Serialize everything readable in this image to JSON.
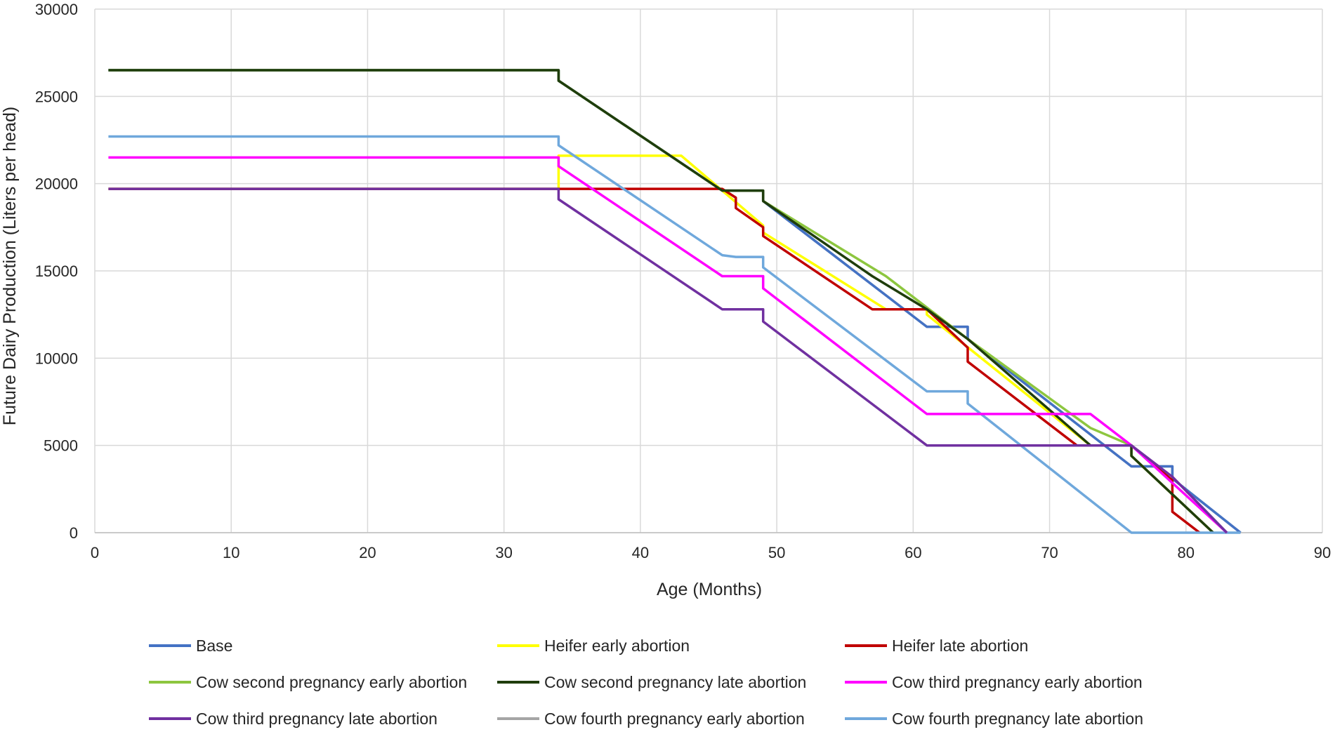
{
  "chart_data": {
    "type": "line",
    "title": "",
    "xlabel": "Age (Months)",
    "ylabel": "Future Dairy Production (Liters per head)",
    "xlim": [
      0,
      90
    ],
    "ylim": [
      0,
      30000
    ],
    "xticks": [
      0,
      10,
      20,
      30,
      40,
      50,
      60,
      70,
      80,
      90
    ],
    "yticks": [
      0,
      5000,
      10000,
      15000,
      20000,
      25000,
      30000
    ],
    "grid": true,
    "legend_position": "bottom",
    "series": [
      {
        "name": "Cow fourth pregnancy early abortion",
        "color": "#a5a5a5",
        "points": [
          [
            1,
            26500
          ],
          [
            34,
            26500
          ],
          [
            34,
            25900
          ],
          [
            46,
            19600
          ],
          [
            49,
            19600
          ],
          [
            49,
            19000
          ],
          [
            61,
            11800
          ],
          [
            64,
            11800
          ],
          [
            64,
            11100
          ],
          [
            76,
            3800
          ],
          [
            79,
            3800
          ],
          [
            79,
            3100
          ],
          [
            84,
            0
          ]
        ]
      },
      {
        "name": "Base",
        "color": "#4472c4",
        "points": [
          [
            1,
            26500
          ],
          [
            34,
            26500
          ],
          [
            34,
            25900
          ],
          [
            46,
            19600
          ],
          [
            49,
            19600
          ],
          [
            49,
            19000
          ],
          [
            61,
            11800
          ],
          [
            64,
            11800
          ],
          [
            64,
            11100
          ],
          [
            76,
            3800
          ],
          [
            79,
            3800
          ],
          [
            79,
            3100
          ],
          [
            84,
            0
          ]
        ]
      },
      {
        "name": "Heifer early abortion",
        "color": "#ffff00",
        "points": [
          [
            1,
            19700
          ],
          [
            34,
            19700
          ],
          [
            34,
            21600
          ],
          [
            43,
            21600
          ],
          [
            49,
            17600
          ],
          [
            49,
            17200
          ],
          [
            58,
            12800
          ],
          [
            61,
            12800
          ],
          [
            61,
            12500
          ],
          [
            73,
            5000
          ],
          [
            76,
            5000
          ],
          [
            76,
            4400
          ],
          [
            82,
            0
          ]
        ]
      },
      {
        "name": "Cow second pregnancy early abortion",
        "color": "#8dc63f",
        "points": [
          [
            1,
            26500
          ],
          [
            34,
            26500
          ],
          [
            34,
            25900
          ],
          [
            46,
            19600
          ],
          [
            49,
            19600
          ],
          [
            49,
            19000
          ],
          [
            58,
            14700
          ],
          [
            61,
            12900
          ],
          [
            64,
            11100
          ],
          [
            73,
            6000
          ],
          [
            76,
            5000
          ],
          [
            76,
            4400
          ],
          [
            82,
            0
          ]
        ]
      },
      {
        "name": "Heifer late abortion",
        "color": "#c00000",
        "points": [
          [
            1,
            19700
          ],
          [
            34,
            19700
          ],
          [
            46,
            19700
          ],
          [
            47,
            19200
          ],
          [
            47,
            18600
          ],
          [
            49,
            17500
          ],
          [
            49,
            17000
          ],
          [
            57,
            12800
          ],
          [
            61,
            12800
          ],
          [
            64,
            10600
          ],
          [
            64,
            9800
          ],
          [
            72,
            5000
          ],
          [
            76,
            5000
          ],
          [
            79,
            3000
          ],
          [
            79,
            1200
          ],
          [
            81,
            0
          ]
        ]
      },
      {
        "name": "Cow second pregnancy late abortion",
        "color": "#1f3d0c",
        "points": [
          [
            1,
            26500
          ],
          [
            34,
            26500
          ],
          [
            34,
            25900
          ],
          [
            46,
            19600
          ],
          [
            49,
            19600
          ],
          [
            49,
            19000
          ],
          [
            57,
            14700
          ],
          [
            61,
            12800
          ],
          [
            64,
            11100
          ],
          [
            73,
            5000
          ],
          [
            76,
            5000
          ],
          [
            76,
            4400
          ],
          [
            82,
            0
          ]
        ]
      },
      {
        "name": "Cow fourth pregnancy late abortion",
        "color": "#6fa8dc",
        "points": [
          [
            1,
            22700
          ],
          [
            34,
            22700
          ],
          [
            34,
            22200
          ],
          [
            46,
            15900
          ],
          [
            47,
            15800
          ],
          [
            49,
            15800
          ],
          [
            49,
            15200
          ],
          [
            61,
            8100
          ],
          [
            64,
            8100
          ],
          [
            64,
            7400
          ],
          [
            76,
            0
          ],
          [
            84,
            0
          ]
        ]
      },
      {
        "name": "Cow third pregnancy early abortion",
        "color": "#ff00ff",
        "points": [
          [
            1,
            21500
          ],
          [
            34,
            21500
          ],
          [
            34,
            21000
          ],
          [
            46,
            14700
          ],
          [
            49,
            14700
          ],
          [
            49,
            14000
          ],
          [
            61,
            6800
          ],
          [
            73,
            6800
          ],
          [
            76,
            5000
          ],
          [
            83,
            0
          ]
        ]
      },
      {
        "name": "Cow third pregnancy late abortion",
        "color": "#7030a0",
        "points": [
          [
            1,
            19700
          ],
          [
            34,
            19700
          ],
          [
            34,
            19100
          ],
          [
            46,
            12800
          ],
          [
            49,
            12800
          ],
          [
            49,
            12100
          ],
          [
            61,
            5000
          ],
          [
            76,
            5000
          ],
          [
            79,
            3200
          ],
          [
            83,
            0
          ]
        ]
      }
    ],
    "legend": [
      {
        "label": "Base",
        "color": "#4472c4"
      },
      {
        "label": "Heifer early abortion",
        "color": "#ffff00"
      },
      {
        "label": "Heifer late abortion",
        "color": "#c00000"
      },
      {
        "label": "Cow second pregnancy early abortion",
        "color": "#8dc63f"
      },
      {
        "label": "Cow second pregnancy late abortion",
        "color": "#1f3d0c"
      },
      {
        "label": "Cow third pregnancy early abortion",
        "color": "#ff00ff"
      },
      {
        "label": "Cow third pregnancy late abortion",
        "color": "#7030a0"
      },
      {
        "label": "Cow fourth pregnancy early abortion",
        "color": "#a5a5a5"
      },
      {
        "label": "Cow fourth pregnancy late abortion",
        "color": "#6fa8dc"
      }
    ]
  }
}
